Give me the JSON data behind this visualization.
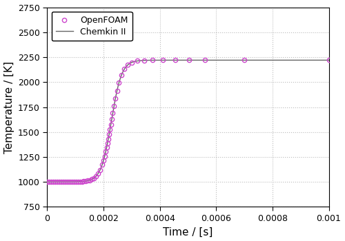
{
  "title": "",
  "xlabel": "Time / [s]",
  "ylabel": "Temperature / [K]",
  "xlim": [
    0,
    0.001
  ],
  "ylim": [
    750,
    2750
  ],
  "yticks": [
    750,
    1000,
    1250,
    1500,
    1750,
    2000,
    2250,
    2500,
    2750
  ],
  "xticks": [
    0,
    0.0002,
    0.0004,
    0.0006,
    0.0008,
    0.001
  ],
  "openfoam_color": "#cc44cc",
  "chemkin_color": "#666666",
  "background_color": "#ffffff",
  "plot_bg_color": "#ffffff",
  "grid_color": "#bbbbbb",
  "legend_labels": [
    "OpenFOAM",
    "Chemkin II"
  ],
  "T_initial": 1000.0,
  "T_final": 2220.0,
  "t_ignition": 0.000228,
  "rise_rate": 55000
}
